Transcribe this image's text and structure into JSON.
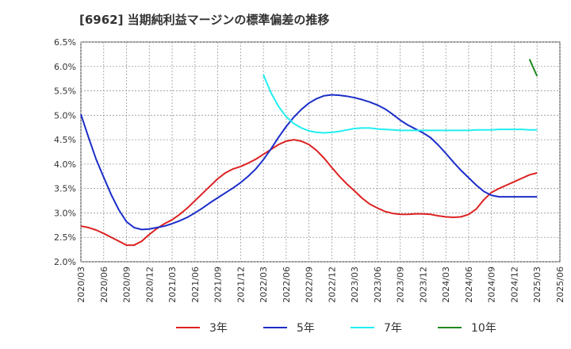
{
  "chart_data": {
    "type": "line",
    "title": "[6962]  当期純利益マージンの標準偏差の推移",
    "xlabel": "",
    "ylabel": "",
    "ylim": [
      2.0,
      6.5
    ],
    "yticks": [
      2.0,
      2.5,
      3.0,
      3.5,
      4.0,
      4.5,
      5.0,
      5.5,
      6.0,
      6.5
    ],
    "ytick_labels": [
      "2.0%",
      "2.5%",
      "3.0%",
      "3.5%",
      "4.0%",
      "4.5%",
      "5.0%",
      "5.5%",
      "6.0%",
      "6.5%"
    ],
    "xtick_labels": [
      "2020/03",
      "2020/06",
      "2020/09",
      "2020/12",
      "2021/03",
      "2021/06",
      "2021/09",
      "2021/12",
      "2022/03",
      "2022/06",
      "2022/09",
      "2022/12",
      "2023/03",
      "2023/06",
      "2023/09",
      "2023/12",
      "2024/03",
      "2024/06",
      "2024/09",
      "2024/12",
      "2025/03",
      "2025/06"
    ],
    "grid": true,
    "legend_position": "bottom",
    "x": [
      "2020/03",
      "2020/04",
      "2020/05",
      "2020/06",
      "2020/07",
      "2020/08",
      "2020/09",
      "2020/10",
      "2020/11",
      "2020/12",
      "2021/01",
      "2021/02",
      "2021/03",
      "2021/04",
      "2021/05",
      "2021/06",
      "2021/07",
      "2021/08",
      "2021/09",
      "2021/10",
      "2021/11",
      "2021/12",
      "2022/01",
      "2022/02",
      "2022/03",
      "2022/04",
      "2022/05",
      "2022/06",
      "2022/07",
      "2022/08",
      "2022/09",
      "2022/10",
      "2022/11",
      "2022/12",
      "2023/01",
      "2023/02",
      "2023/03",
      "2023/04",
      "2023/05",
      "2023/06",
      "2023/07",
      "2023/08",
      "2023/09",
      "2023/10",
      "2023/11",
      "2023/12",
      "2024/01",
      "2024/02",
      "2024/03",
      "2024/04",
      "2024/05",
      "2024/06",
      "2024/07",
      "2024/08",
      "2024/09",
      "2024/10",
      "2024/11",
      "2024/12",
      "2025/01",
      "2025/02",
      "2025/03"
    ],
    "series": [
      {
        "name": "3年",
        "color": "#dd2222",
        "values": [
          2.73,
          2.7,
          2.65,
          2.58,
          2.5,
          2.42,
          2.34,
          2.34,
          2.42,
          2.56,
          2.68,
          2.78,
          2.86,
          2.97,
          3.1,
          3.25,
          3.4,
          3.55,
          3.7,
          3.82,
          3.9,
          3.95,
          4.02,
          4.1,
          4.2,
          4.3,
          4.4,
          4.47,
          4.5,
          4.47,
          4.4,
          4.28,
          4.12,
          3.93,
          3.75,
          3.59,
          3.45,
          3.3,
          3.18,
          3.1,
          3.03,
          2.99,
          2.97,
          2.97,
          2.98,
          2.98,
          2.97,
          2.94,
          2.92,
          2.91,
          2.92,
          2.97,
          3.08,
          3.27,
          3.42,
          3.5,
          3.57,
          3.64,
          3.71,
          3.78,
          3.82
        ]
      },
      {
        "name": "5年",
        "color": "#1c2ec9",
        "values": [
          5.02,
          4.55,
          4.1,
          3.73,
          3.37,
          3.06,
          2.82,
          2.7,
          2.66,
          2.67,
          2.7,
          2.73,
          2.78,
          2.84,
          2.91,
          3.0,
          3.1,
          3.21,
          3.31,
          3.41,
          3.51,
          3.62,
          3.75,
          3.9,
          4.09,
          4.31,
          4.55,
          4.77,
          4.96,
          5.12,
          5.25,
          5.34,
          5.4,
          5.42,
          5.41,
          5.39,
          5.36,
          5.32,
          5.27,
          5.21,
          5.13,
          5.02,
          4.9,
          4.8,
          4.72,
          4.64,
          4.54,
          4.39,
          4.22,
          4.04,
          3.87,
          3.72,
          3.57,
          3.44,
          3.36,
          3.33,
          3.33,
          3.33,
          3.33,
          3.33,
          3.33
        ]
      },
      {
        "name": "7年",
        "color": "#22eef0",
        "values": [
          null,
          null,
          null,
          null,
          null,
          null,
          null,
          null,
          null,
          null,
          null,
          null,
          null,
          null,
          null,
          null,
          null,
          null,
          null,
          null,
          null,
          null,
          null,
          null,
          5.83,
          5.46,
          5.18,
          4.97,
          4.83,
          4.74,
          4.68,
          4.65,
          4.64,
          4.65,
          4.67,
          4.7,
          4.73,
          4.74,
          4.74,
          4.72,
          4.71,
          4.7,
          4.69,
          4.69,
          4.69,
          4.69,
          4.69,
          4.69,
          4.69,
          4.69,
          4.69,
          4.69,
          4.7,
          4.7,
          4.7,
          4.71,
          4.71,
          4.71,
          4.71,
          4.7,
          4.7
        ]
      },
      {
        "name": "10年",
        "color": "#228822",
        "values": [
          null,
          null,
          null,
          null,
          null,
          null,
          null,
          null,
          null,
          null,
          null,
          null,
          null,
          null,
          null,
          null,
          null,
          null,
          null,
          null,
          null,
          null,
          null,
          null,
          null,
          null,
          null,
          null,
          null,
          null,
          null,
          null,
          null,
          null,
          null,
          null,
          null,
          null,
          null,
          null,
          null,
          null,
          null,
          null,
          null,
          null,
          null,
          null,
          null,
          null,
          null,
          null,
          null,
          null,
          null,
          null,
          null,
          null,
          null,
          6.15,
          5.8
        ]
      }
    ]
  }
}
